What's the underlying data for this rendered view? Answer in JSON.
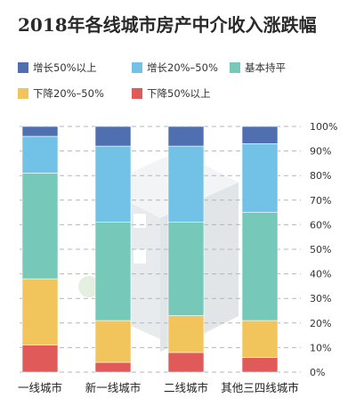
{
  "chart_data": {
    "type": "bar",
    "stacked": true,
    "title": "2018年各线城市房产中介收入涨跌幅",
    "categories": [
      "一线城市",
      "新一线城市",
      "二线城市",
      "其他三四线城市"
    ],
    "series": [
      {
        "name": "下降50%以上",
        "color": "#e05a5a",
        "values": [
          11,
          4,
          8,
          6
        ]
      },
      {
        "name": "下降20%–50%",
        "color": "#f2c45c",
        "values": [
          27,
          17,
          15,
          15
        ]
      },
      {
        "name": "基本持平",
        "color": "#76c8b8",
        "values": [
          43,
          40,
          38,
          44
        ]
      },
      {
        "name": "增长20%–50%",
        "color": "#72c2e8",
        "values": [
          15,
          31,
          31,
          28
        ]
      },
      {
        "name": "增长50%以上",
        "color": "#4f6fb0",
        "values": [
          4,
          8,
          8,
          7
        ]
      }
    ],
    "yticks": [
      "0%",
      "10%",
      "20%",
      "30%",
      "40%",
      "50%",
      "60%",
      "70%",
      "80%",
      "90%",
      "100%"
    ],
    "ylim": [
      0,
      100
    ],
    "ylabel": "",
    "xlabel": "",
    "grid": true,
    "legend_position": "top",
    "legend_order": [
      "增长50%以上",
      "增长20%–50%",
      "基本持平",
      "下降20%–50%",
      "下降50%以上"
    ]
  }
}
